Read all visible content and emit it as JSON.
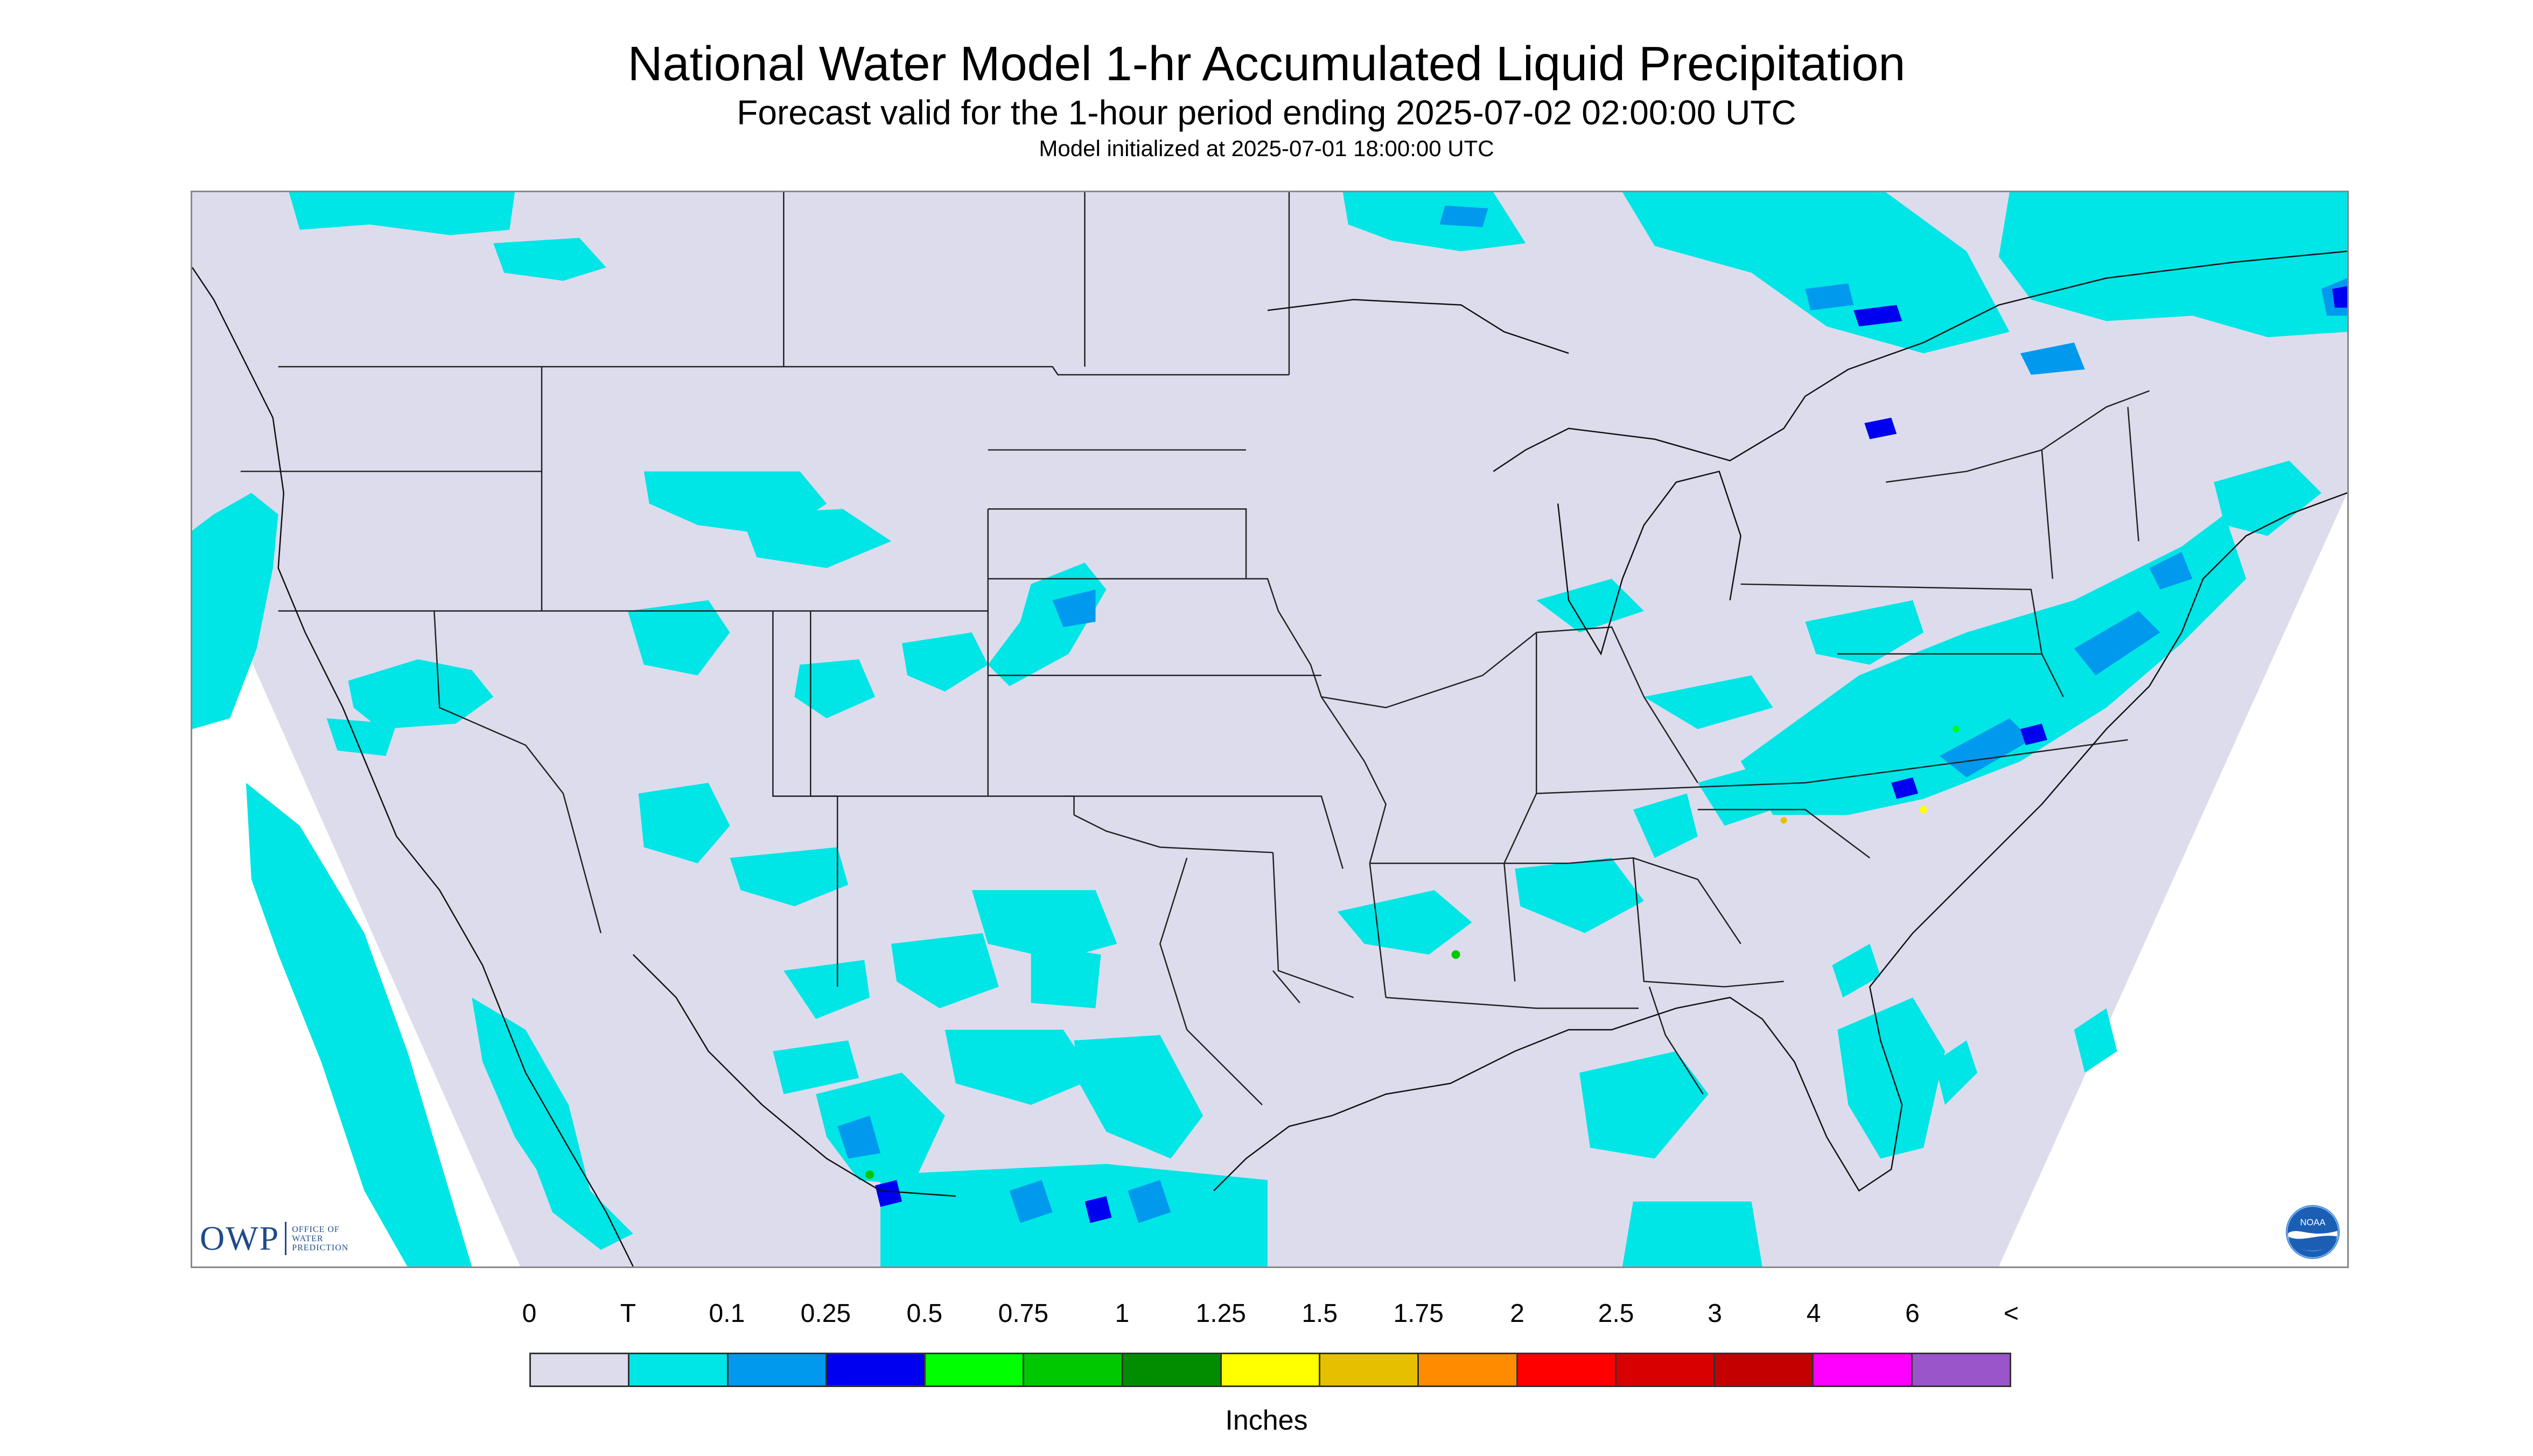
{
  "header": {
    "title": "National Water Model 1-hr Accumulated Liquid Precipitation",
    "subtitle": "Forecast valid for the 1-hour period ending 2025-07-02 02:00:00 UTC",
    "init_text": "Model initialized at 2025-07-01 18:00:00 UTC"
  },
  "map": {
    "background_color": "#dcdced",
    "outside_domain_color": "#ffffff",
    "boundary_color": "#222222"
  },
  "logos": {
    "owp_letters": "OWP",
    "owp_subtext": [
      "OFFICE OF",
      "WATER",
      "PREDICTION"
    ],
    "noaa_text": "NOAA",
    "owp_icon": "owp-logo",
    "noaa_icon": "noaa-logo"
  },
  "legend": {
    "labels": [
      "0",
      "T",
      "0.1",
      "0.25",
      "0.5",
      "0.75",
      "1",
      "1.25",
      "1.5",
      "1.75",
      "2",
      "2.5",
      "3",
      "4",
      "6",
      "<"
    ],
    "colors": [
      "#dcdced",
      "#00e5e5",
      "#0099ee",
      "#0000f0",
      "#00ff00",
      "#00c800",
      "#008e00",
      "#ffff00",
      "#e6c000",
      "#ff8c00",
      "#ff0000",
      "#d80000",
      "#c40000",
      "#ff00ff",
      "#9955c9"
    ],
    "unit": "Inches"
  }
}
